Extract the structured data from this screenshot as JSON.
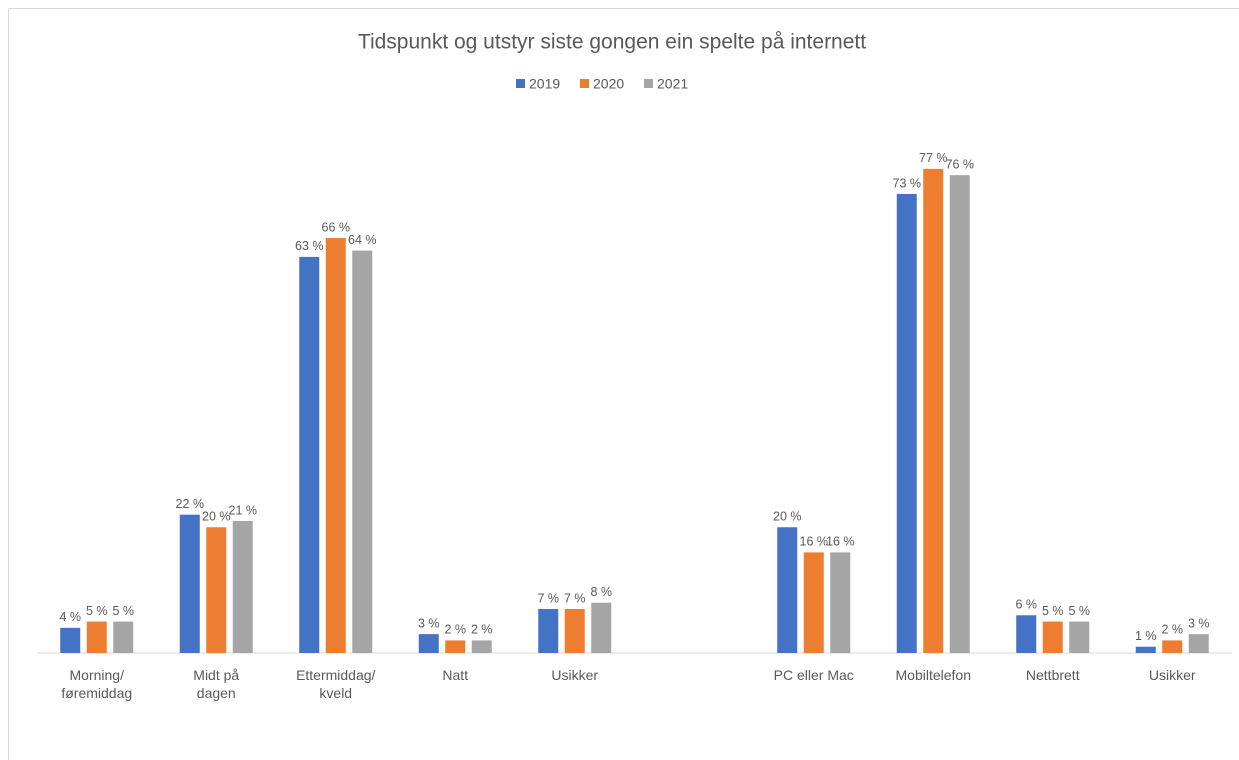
{
  "chart_data": {
    "type": "bar",
    "title": "Tidspunkt og utstyr siste gongen ein spelte på internett",
    "categories": [
      "Morning/\nføremiddag",
      "Midt på\ndagen",
      "Ettermiddag/\nkveld",
      "Natt",
      "Usikker",
      null,
      "PC eller Mac",
      "Mobiltelefon",
      "Nettbrett",
      "Usikker"
    ],
    "series": [
      {
        "name": "2019",
        "color": "#4472c4",
        "values": [
          4,
          22,
          63,
          3,
          7,
          null,
          20,
          73,
          6,
          1
        ],
        "value_labels": [
          "4 %",
          "22 %",
          "63 %",
          "3 %",
          "7 %",
          null,
          "20 %",
          "73 %",
          "6 %",
          "1 %"
        ]
      },
      {
        "name": "2020",
        "color": "#ed7d31",
        "values": [
          5,
          20,
          66,
          2,
          7,
          null,
          16,
          77,
          5,
          2
        ],
        "value_labels": [
          "5 %",
          "20 %",
          "66 %",
          "2 %",
          "7 %",
          null,
          "16 %",
          "77 %",
          "5 %",
          "2 %"
        ]
      },
      {
        "name": "2021",
        "color": "#a5a5a5",
        "values": [
          5,
          21,
          64,
          2,
          8,
          null,
          16,
          76,
          5,
          3
        ],
        "value_labels": [
          "5 %",
          "21 %",
          "64 %",
          "2 %",
          "8 %",
          null,
          "16 %",
          "76 %",
          "5 %",
          "3 %"
        ]
      }
    ],
    "ylim": [
      0,
      80
    ],
    "legend": "top"
  }
}
